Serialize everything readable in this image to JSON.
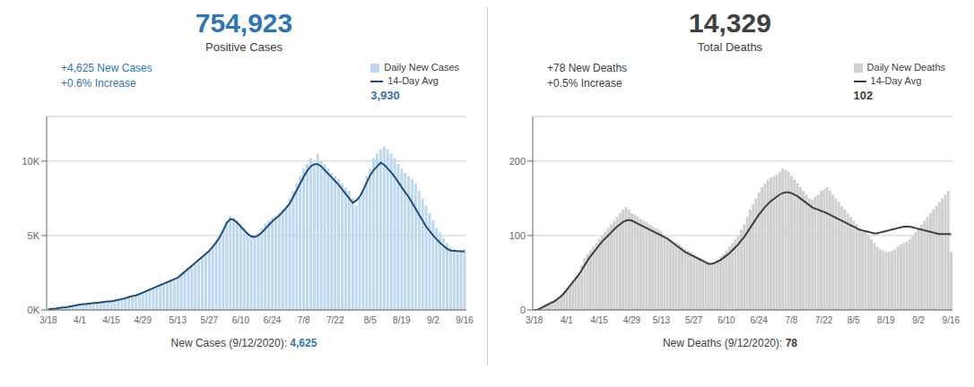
{
  "chart_data": [
    {
      "type": "bar",
      "annotations": [
        {
          "text": "754,923",
          "color": "#2E75B6"
        },
        {
          "text": "Positive Cases",
          "color": "#404040"
        },
        {
          "text": "+4,625 New Cases",
          "color": "#2E75B6"
        },
        {
          "text": "+0.6% Increase",
          "color": "#2E75B6"
        },
        {
          "text": "3,930",
          "color": "#2E75B6"
        },
        {
          "text": "New Cases (9/12/2020): ",
          "color": "#404040"
        },
        {
          "text": "4,625",
          "color": "#2E75B6"
        }
      ],
      "categories": [
        "3/18",
        null,
        null,
        null,
        null,
        null,
        null,
        null,
        null,
        "4/1",
        null,
        null,
        null,
        null,
        null,
        null,
        null,
        null,
        "4/15",
        null,
        null,
        null,
        null,
        null,
        null,
        null,
        null,
        "4/29",
        null,
        null,
        null,
        null,
        null,
        null,
        null,
        null,
        null,
        "5/13",
        null,
        null,
        null,
        null,
        null,
        null,
        null,
        null,
        "5/27",
        null,
        null,
        null,
        null,
        null,
        null,
        null,
        null,
        "6/10",
        null,
        null,
        null,
        null,
        null,
        null,
        null,
        null,
        "6/24",
        null,
        null,
        null,
        null,
        null,
        null,
        null,
        null,
        "7/8",
        null,
        null,
        null,
        null,
        null,
        null,
        null,
        null,
        "7/22",
        null,
        null,
        null,
        null,
        null,
        null,
        null,
        null,
        null,
        "8/5",
        null,
        null,
        null,
        null,
        null,
        null,
        null,
        null,
        "8/19",
        null,
        null,
        null,
        null,
        null,
        null,
        null,
        null,
        "9/2",
        null,
        null,
        null,
        null,
        null,
        null,
        null,
        null,
        "9/16"
      ],
      "series": [
        {
          "name": "Daily New Cases",
          "type": "bar",
          "color": "#BDD7EE",
          "values": [
            50,
            80,
            100,
            150,
            180,
            200,
            250,
            300,
            350,
            380,
            400,
            420,
            450,
            480,
            500,
            520,
            550,
            580,
            600,
            650,
            700,
            750,
            800,
            900,
            950,
            1000,
            1100,
            1200,
            1300,
            1400,
            1500,
            1600,
            1700,
            1800,
            1900,
            2000,
            2100,
            2200,
            2400,
            2600,
            2800,
            3000,
            3200,
            3400,
            3600,
            3800,
            4000,
            4300,
            4600,
            5000,
            5500,
            6000,
            6300,
            6200,
            6000,
            5800,
            5500,
            5200,
            5000,
            4800,
            5200,
            5500,
            5800,
            6000,
            6200,
            6300,
            6500,
            6800,
            7000,
            7500,
            8000,
            8500,
            9000,
            9500,
            9800,
            10200,
            9800,
            10500,
            10000,
            9800,
            9500,
            9200,
            9000,
            8800,
            8500,
            8200,
            8000,
            7500,
            7000,
            7500,
            8000,
            9000,
            9500,
            10200,
            10500,
            10800,
            11000,
            10800,
            10500,
            10200,
            9800,
            9500,
            9200,
            9000,
            8800,
            8500,
            8000,
            7500,
            7000,
            6500,
            6000,
            5500,
            5200,
            4800,
            4500,
            4200,
            4100,
            3900,
            4000,
            4100
          ]
        },
        {
          "name": "14-Day Avg",
          "type": "line",
          "color": "#1F4E79",
          "values": [
            50,
            75,
            95,
            130,
            160,
            185,
            220,
            270,
            320,
            360,
            385,
            405,
            430,
            460,
            485,
            510,
            535,
            565,
            590,
            630,
            680,
            730,
            780,
            870,
            930,
            980,
            1070,
            1170,
            1270,
            1370,
            1470,
            1570,
            1670,
            1770,
            1870,
            1970,
            2070,
            2170,
            2370,
            2570,
            2770,
            2970,
            3170,
            3370,
            3570,
            3770,
            3970,
            4250,
            4550,
            4900,
            5350,
            5850,
            6100,
            6050,
            5850,
            5600,
            5350,
            5100,
            4950,
            4900,
            5000,
            5200,
            5450,
            5700,
            5950,
            6150,
            6350,
            6600,
            6850,
            7150,
            7600,
            8050,
            8500,
            8950,
            9350,
            9650,
            9800,
            9800,
            9650,
            9400,
            9150,
            8900,
            8650,
            8400,
            8100,
            7800,
            7500,
            7200,
            7350,
            7600,
            8050,
            8550,
            9050,
            9400,
            9650,
            9900,
            9750,
            9500,
            9250,
            8950,
            8600,
            8250,
            7900,
            7600,
            7200,
            6800,
            6400,
            6000,
            5600,
            5300,
            5000,
            4750,
            4500,
            4300,
            4100,
            3990,
            3970,
            3950,
            3940,
            3930
          ]
        }
      ],
      "ylim": [
        0,
        13000
      ],
      "yticks": [
        {
          "value": 0,
          "label": "0K"
        },
        {
          "value": 5000,
          "label": "5K"
        },
        {
          "value": 10000,
          "label": "10K"
        }
      ],
      "grid": true
    },
    {
      "type": "bar",
      "annotations": [
        {
          "text": "14,329",
          "color": "#404040"
        },
        {
          "text": "Total Deaths",
          "color": "#404040"
        },
        {
          "text": "+78 New Deaths",
          "color": "#404040"
        },
        {
          "text": "+0.5% Increase",
          "color": "#404040"
        },
        {
          "text": "102",
          "color": "#404040"
        },
        {
          "text": "New Deaths (9/12/2020): ",
          "color": "#404040"
        },
        {
          "text": "78",
          "color": "#404040"
        }
      ],
      "categories": [
        "3/18",
        null,
        null,
        null,
        null,
        null,
        null,
        null,
        null,
        null,
        null,
        "4/1",
        null,
        null,
        null,
        null,
        null,
        null,
        null,
        null,
        null,
        null,
        "4/15",
        null,
        null,
        null,
        null,
        null,
        null,
        null,
        null,
        null,
        null,
        "4/29",
        null,
        null,
        null,
        null,
        null,
        null,
        null,
        null,
        null,
        "5/13",
        null,
        null,
        null,
        null,
        null,
        null,
        null,
        null,
        null,
        null,
        "5/27",
        null,
        null,
        null,
        null,
        null,
        null,
        null,
        null,
        null,
        null,
        "6/10",
        null,
        null,
        null,
        null,
        null,
        null,
        null,
        null,
        null,
        null,
        "6/24",
        null,
        null,
        null,
        null,
        null,
        null,
        null,
        null,
        null,
        null,
        "7/8",
        null,
        null,
        null,
        null,
        null,
        null,
        null,
        null,
        null,
        null,
        "7/22",
        null,
        null,
        null,
        null,
        null,
        null,
        null,
        null,
        null,
        "8/5",
        null,
        null,
        null,
        null,
        null,
        null,
        null,
        null,
        null,
        null,
        "8/19",
        null,
        null,
        null,
        null,
        null,
        null,
        null,
        null,
        null,
        null,
        "9/2",
        null,
        null,
        null,
        null,
        null,
        null,
        null,
        null,
        null,
        null,
        "9/16"
      ],
      "series": [
        {
          "name": "Daily New Deaths",
          "type": "bar",
          "color": "#D0D0D0",
          "values": [
            0,
            0,
            2,
            5,
            8,
            10,
            12,
            15,
            18,
            20,
            25,
            30,
            35,
            40,
            45,
            50,
            60,
            70,
            75,
            80,
            85,
            90,
            95,
            100,
            105,
            110,
            115,
            120,
            125,
            130,
            135,
            138,
            135,
            130,
            128,
            125,
            122,
            120,
            118,
            115,
            112,
            110,
            108,
            105,
            100,
            98,
            95,
            92,
            90,
            88,
            85,
            82,
            80,
            78,
            75,
            72,
            70,
            68,
            65,
            63,
            62,
            65,
            68,
            72,
            75,
            80,
            85,
            90,
            95,
            100,
            108,
            115,
            125,
            135,
            142,
            150,
            158,
            165,
            170,
            175,
            178,
            180,
            182,
            185,
            190,
            188,
            185,
            180,
            175,
            170,
            165,
            160,
            155,
            150,
            148,
            152,
            155,
            160,
            162,
            165,
            160,
            155,
            150,
            145,
            140,
            135,
            130,
            125,
            120,
            115,
            110,
            108,
            105,
            100,
            95,
            90,
            85,
            82,
            80,
            78,
            78,
            80,
            82,
            85,
            88,
            90,
            92,
            95,
            100,
            105,
            110,
            115,
            120,
            125,
            130,
            135,
            140,
            145,
            150,
            155,
            160,
            78
          ]
        },
        {
          "name": "14-Day Avg",
          "type": "line",
          "color": "#404040",
          "values": [
            0,
            0,
            2,
            4,
            6,
            8,
            10,
            12,
            15,
            18,
            22,
            27,
            32,
            37,
            42,
            47,
            53,
            60,
            66,
            72,
            77,
            82,
            87,
            92,
            96,
            100,
            104,
            108,
            112,
            115,
            118,
            120,
            121,
            120,
            118,
            116,
            114,
            112,
            110,
            108,
            106,
            104,
            102,
            100,
            98,
            96,
            93,
            90,
            87,
            84,
            81,
            78,
            76,
            74,
            72,
            70,
            68,
            66,
            64,
            62,
            62,
            63,
            65,
            67,
            70,
            73,
            76,
            80,
            84,
            88,
            93,
            98,
            104,
            110,
            116,
            122,
            128,
            133,
            138,
            142,
            146,
            149,
            152,
            155,
            157,
            158,
            158,
            157,
            155,
            153,
            150,
            147,
            144,
            141,
            138,
            136,
            135,
            133,
            132,
            130,
            128,
            126,
            124,
            122,
            120,
            118,
            116,
            114,
            112,
            110,
            108,
            107,
            106,
            105,
            104,
            103,
            103,
            104,
            105,
            106,
            107,
            108,
            109,
            110,
            111,
            112,
            112,
            112,
            111,
            110,
            109,
            108,
            107,
            106,
            105,
            104,
            103,
            102,
            102,
            102,
            102,
            102
          ]
        }
      ],
      "ylim": [
        0,
        260
      ],
      "yticks": [
        0,
        100,
        200
      ],
      "grid": true
    }
  ]
}
